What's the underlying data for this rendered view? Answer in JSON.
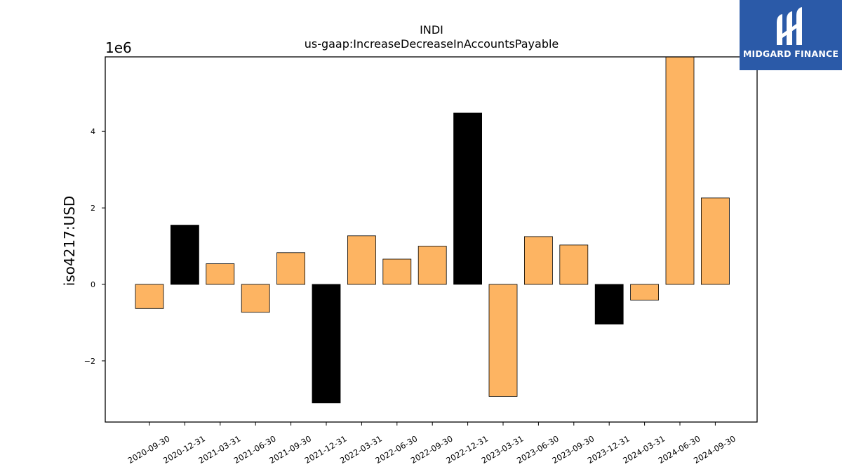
{
  "logo": {
    "text": "MIDGARD FINANCE"
  },
  "chart_data": {
    "type": "bar",
    "title": "INDI",
    "subtitle": "us-gaap:IncreaseDecreaseInAccountsPayable",
    "ylabel": "iso4217:USD",
    "xlabel": "",
    "y_multiplier_label": "1e6",
    "ylim": [
      -3.6,
      5.95
    ],
    "yticks": [
      -2,
      0,
      2,
      4
    ],
    "ytick_labels": [
      "−2",
      "0",
      "2",
      "4"
    ],
    "categories": [
      "2020-09-30",
      "2020-12-31",
      "2021-03-31",
      "2021-06-30",
      "2021-09-30",
      "2021-12-31",
      "2022-03-31",
      "2022-06-30",
      "2022-09-30",
      "2022-12-31",
      "2023-03-31",
      "2023-06-30",
      "2023-09-30",
      "2023-12-31",
      "2024-03-31",
      "2024-06-30",
      "2024-09-30"
    ],
    "values": [
      -0.63,
      1.55,
      0.54,
      -0.73,
      0.83,
      -3.1,
      1.27,
      0.66,
      1.0,
      4.48,
      -2.93,
      1.25,
      1.03,
      -1.04,
      -0.41,
      6.0,
      2.26
    ],
    "bar_colors": [
      "#fdb462",
      "#000000",
      "#fdb462",
      "#fdb462",
      "#fdb462",
      "#000000",
      "#fdb462",
      "#fdb462",
      "#fdb462",
      "#000000",
      "#fdb462",
      "#fdb462",
      "#fdb462",
      "#000000",
      "#fdb462",
      "#fdb462",
      "#fdb462"
    ],
    "grid": false,
    "legend": "none"
  }
}
